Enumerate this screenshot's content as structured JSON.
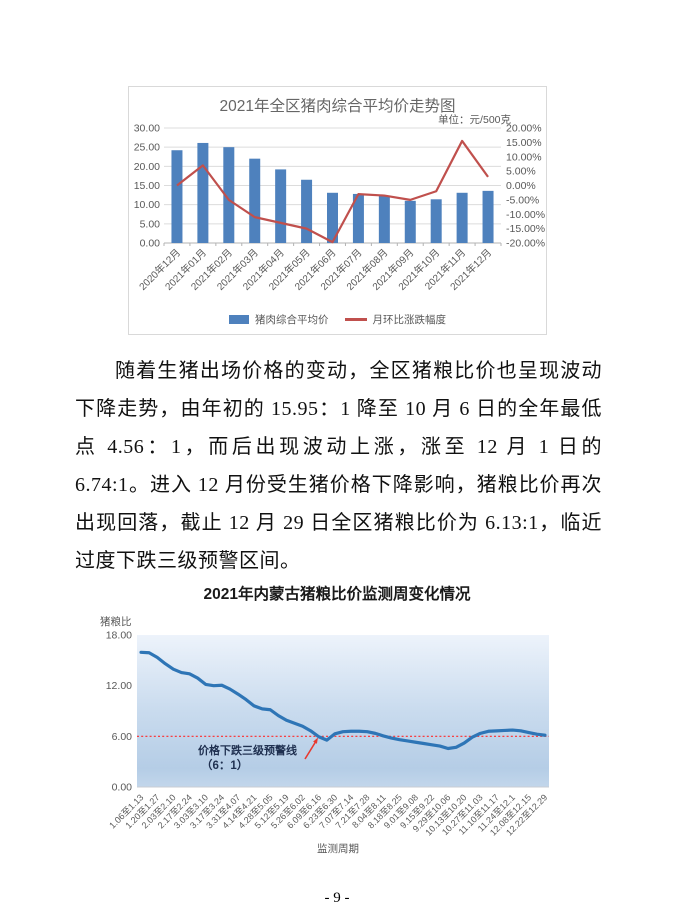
{
  "page": {
    "number_label": "- 9 -"
  },
  "paragraph": {
    "text": "随着生猪出场价格的变动，全区猪粮比价也呈现波动下降走势，由年初的 15.95：1 降至 10 月 6 日的全年最低点 4.56：1，而后出现波动上涨，涨至 12 月 1 日的 6.74:1。进入 12 月份受生猪价格下降影响，猪粮比价再次出现回落，截止 12 月 29 日全区猪粮比价为 6.13:1，临近过度下跌三级预警区间。"
  },
  "chart_data": [
    {
      "type": "bar+line",
      "title": "2021年全区猪肉综合平均价走势图",
      "unit_label": "单位：元/500克",
      "legend_position": "bottom",
      "grid": true,
      "categories": [
        "2020年12月",
        "2021年01月",
        "2021年02月",
        "2021年03月",
        "2021年04月",
        "2021年05月",
        "2021年06月",
        "2021年07月",
        "2021年08月",
        "2021年09月",
        "2021年10月",
        "2021年11月",
        "2021年12月"
      ],
      "series": [
        {
          "name": "猪肉综合平均价",
          "type": "bar",
          "axis": "left",
          "color": "#4e81bd",
          "values": [
            24.2,
            26.1,
            25.0,
            22.0,
            19.2,
            16.5,
            13.1,
            12.8,
            12.3,
            11.0,
            11.4,
            13.1,
            13.6
          ]
        },
        {
          "name": "月环比涨跌幅度",
          "type": "line",
          "axis": "right",
          "color": "#c0504d",
          "values": [
            0,
            7,
            -5,
            -11,
            -13,
            -15,
            -19.7,
            -3,
            -3.5,
            -5,
            -2,
            15.5,
            3
          ]
        }
      ],
      "left_axis": {
        "min": 0,
        "max": 30,
        "step": 5,
        "tick_labels": [
          "30.00",
          "25.00",
          "20.00",
          "15.00",
          "10.00",
          "5.00",
          "0.00"
        ]
      },
      "right_axis": {
        "min": -20,
        "max": 20,
        "step": 5,
        "tick_labels": [
          "20.00%",
          "15.00%",
          "10.00%",
          "5.00%",
          "0.00%",
          "-5.00%",
          "-10.00%",
          "-15.00%",
          "-20.00%"
        ]
      }
    },
    {
      "type": "line",
      "title": "2021年内蒙古猪粮比价监测周变化情况",
      "ylabel": "猪粮比",
      "xlabel": "监测周期",
      "ylim": [
        0,
        18
      ],
      "y_tick_labels": [
        "18.00",
        "12.00",
        "6.00",
        "0.00"
      ],
      "line_color": "#2e75b6",
      "area_gradient": [
        "#edf3fb",
        "#c9dbee",
        "#b5cde6",
        "#c2d6eb"
      ],
      "warning_line": {
        "value": 6,
        "color": "#ff2a2a",
        "label_line1": "价格下跌三级预警线",
        "label_line2": "（6：1）",
        "arrow_color": "#e8392f"
      },
      "x_tick_labels": [
        "1.06至1.13",
        "1.20至1.27",
        "2.03至2.10",
        "2.17至2.24",
        "3.03至3.10",
        "3.17至3.24",
        "3.31至4.07",
        "4.14至4.21",
        "4.28至5.05",
        "5.12至5.19",
        "5.26至6.02",
        "6.09至6.16",
        "6.23至6.30",
        "7.07至7.14",
        "7.21至7.28",
        "8.04至8.11",
        "8.18至8.25",
        "9.01至9.08",
        "9.15至9.22",
        "9.29至10.06",
        "10.13至10.20",
        "10.27至11.03",
        "11.10至11.17",
        "11.24至12.1",
        "12.08至12.15",
        "12.22至12.29"
      ],
      "values": [
        15.95,
        15.9,
        15.35,
        14.6,
        13.95,
        13.55,
        13.4,
        12.9,
        12.15,
        12.0,
        12.05,
        11.6,
        11.0,
        10.35,
        9.6,
        9.25,
        9.15,
        8.45,
        7.9,
        7.55,
        7.2,
        6.65,
        5.95,
        5.55,
        6.3,
        6.55,
        6.6,
        6.6,
        6.55,
        6.35,
        6.05,
        5.8,
        5.6,
        5.45,
        5.3,
        5.15,
        5.0,
        4.85,
        4.56,
        4.7,
        5.2,
        5.9,
        6.35,
        6.6,
        6.65,
        6.7,
        6.74,
        6.65,
        6.45,
        6.25,
        6.13
      ]
    }
  ]
}
